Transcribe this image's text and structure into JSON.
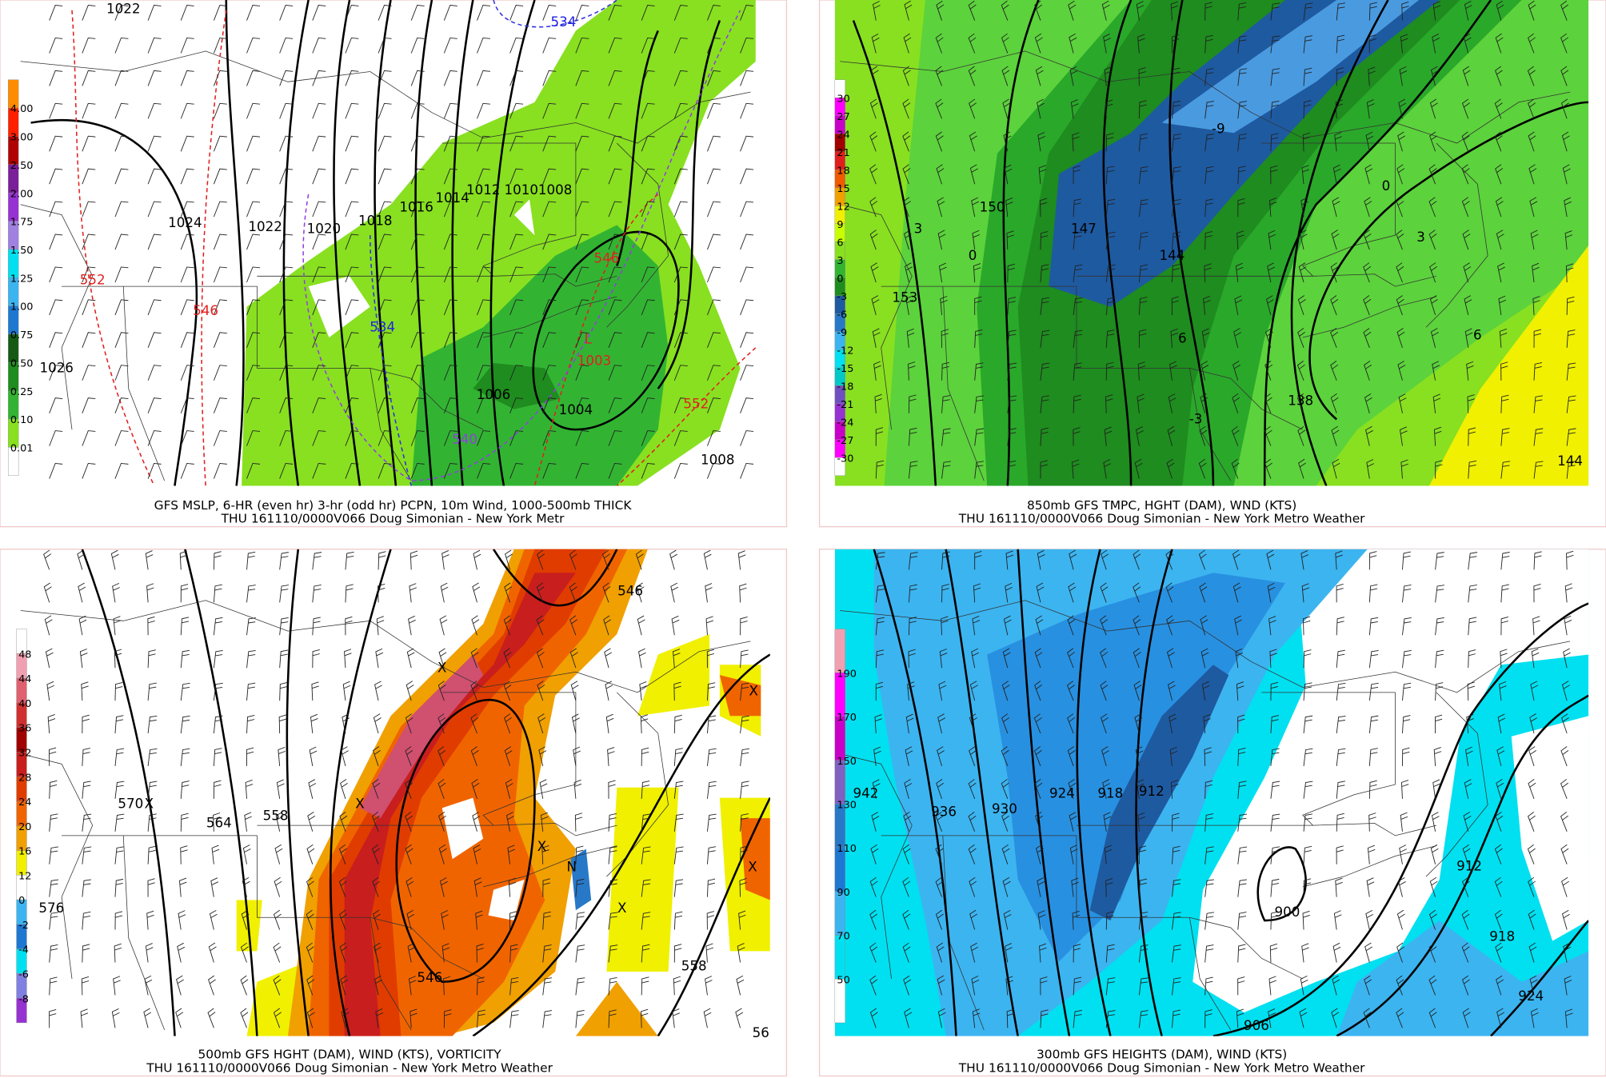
{
  "panels": [
    {
      "caption": [
        "GFS MSLP, 6-HR (even hr) 3-hr (odd hr) PCPN, 10m Wind, 1000-500mb THICK",
        "THU 161110/0000V066 Doug Simonian - New York Metr"
      ],
      "colorbar": [
        "4.00",
        "3.00",
        "2.50",
        "2.00",
        "1.75",
        "1.50",
        "1.25",
        "1.00",
        "0.75",
        "0.50",
        "0.25",
        "0.10",
        "0.01"
      ],
      "labels": [
        "1022",
        "534",
        "1024",
        "1022",
        "1020",
        "1018",
        "1016",
        "1014",
        "1012",
        "1010",
        "1008",
        "552",
        "546",
        "546",
        "534",
        "L",
        "1003",
        "1006",
        "1004",
        "552",
        "540",
        "1008",
        "1026"
      ]
    },
    {
      "caption": [
        "850mb GFS TMPC, HGHT (DAM), WND (KTS)",
        "THU 161110/0000V066 Doug Simonian - New York Metro Weather"
      ],
      "colorbar": [
        "30",
        "27",
        "24",
        "21",
        "18",
        "15",
        "12",
        "9",
        "6",
        "3",
        "0",
        "-3",
        "-6",
        "-9",
        "-12",
        "-15",
        "-18",
        "-21",
        "-24",
        "-27",
        "-30"
      ],
      "labels": [
        "-9",
        "0",
        "150",
        "3",
        "0",
        "147",
        "144",
        "3",
        "153",
        "6",
        "6",
        "138",
        "144",
        "-3"
      ]
    },
    {
      "caption": [
        "500mb GFS HGHT (DAM), WIND (KTS), VORTICITY",
        "THU 161110/0000V066 Doug Simonian - New York Metro Weather"
      ],
      "colorbar": [
        "48",
        "44",
        "40",
        "36",
        "32",
        "28",
        "24",
        "20",
        "16",
        "12",
        "0",
        "-2",
        "-4",
        "-6",
        "-8"
      ],
      "labels": [
        "546",
        "X",
        "X",
        "570",
        "X",
        "564",
        "558",
        "X",
        "X",
        "N",
        "X",
        "X",
        "576",
        "558",
        "546",
        "56"
      ]
    },
    {
      "caption": [
        "300mb GFS HEIGHTS (DAM), WIND (KTS)",
        "THU 161110/0000V066 Doug Simonian - New York Metro Weather"
      ],
      "colorbar": [
        "190",
        "170",
        "150",
        "130",
        "110",
        "90",
        "70",
        "50"
      ],
      "labels": [
        "942",
        "936",
        "930",
        "924",
        "918",
        "912",
        "912",
        "900",
        "918",
        "924",
        "906"
      ]
    }
  ]
}
